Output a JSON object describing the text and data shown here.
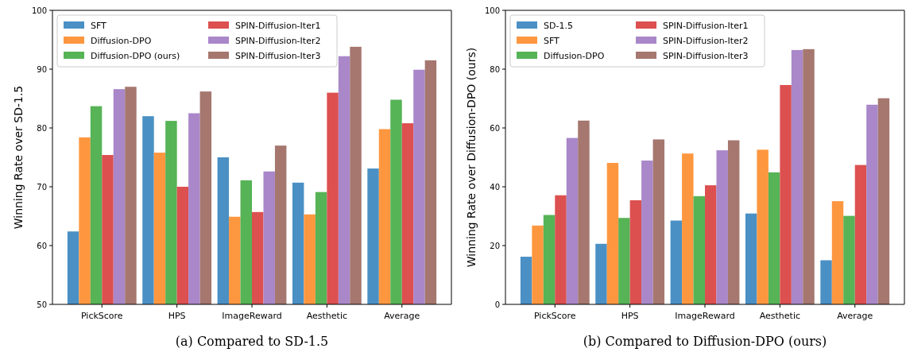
{
  "chart_data": [
    {
      "type": "bar",
      "ylabel": "Winning Rate over SD-1.5",
      "categories": [
        "PickScore",
        "HPS",
        "ImageReward",
        "Aesthetic",
        "Average"
      ],
      "ylim": [
        50,
        100
      ],
      "yticks": [
        50,
        60,
        70,
        80,
        90,
        100
      ],
      "legend": "top left",
      "annotations": [
        "(a) Compared to SD-1.5"
      ],
      "series": [
        {
          "name": "SFT",
          "color": "#4a90c4",
          "values": [
            62.4,
            82.0,
            75.0,
            70.7,
            73.1
          ]
        },
        {
          "name": "Diffusion-DPO",
          "color": "#fd973f",
          "values": [
            78.4,
            75.8,
            64.9,
            65.3,
            79.8
          ]
        },
        {
          "name": "Diffusion-DPO (ours)",
          "color": "#56b356",
          "values": [
            83.7,
            81.2,
            71.1,
            69.1,
            84.8
          ]
        },
        {
          "name": "SPIN-Diffusion-Iter1",
          "color": "#dc5050",
          "values": [
            75.4,
            70.0,
            65.7,
            86.0,
            80.8
          ]
        },
        {
          "name": "SPIN-Diffusion-Iter2",
          "color": "#a987c9",
          "values": [
            86.6,
            82.5,
            72.6,
            92.2,
            89.9
          ]
        },
        {
          "name": "SPIN-Diffusion-Iter3",
          "color": "#a5776f",
          "values": [
            87.0,
            86.2,
            77.0,
            93.8,
            91.5
          ]
        }
      ]
    },
    {
      "type": "bar",
      "ylabel": "Winning Rate over Diffusion-DPO (ours)",
      "categories": [
        "PickScore",
        "HPS",
        "ImageReward",
        "Aesthetic",
        "Average"
      ],
      "ylim": [
        0,
        100
      ],
      "yticks": [
        0,
        20,
        40,
        60,
        80,
        100
      ],
      "legend": "top left",
      "annotations": [
        "(b) Compared to Diffusion-DPO (ours)"
      ],
      "series": [
        {
          "name": "SD-1.5",
          "color": "#4a90c4",
          "values": [
            16.2,
            20.6,
            28.5,
            30.9,
            15.0
          ]
        },
        {
          "name": "SFT",
          "color": "#fd973f",
          "values": [
            26.8,
            48.1,
            51.3,
            52.6,
            35.1
          ]
        },
        {
          "name": "Diffusion-DPO",
          "color": "#56b356",
          "values": [
            30.4,
            29.4,
            36.8,
            44.9,
            30.1
          ]
        },
        {
          "name": "SPIN-Diffusion-Iter1",
          "color": "#dc5050",
          "values": [
            37.1,
            35.4,
            40.5,
            74.6,
            47.4
          ]
        },
        {
          "name": "SPIN-Diffusion-Iter2",
          "color": "#a987c9",
          "values": [
            56.6,
            48.9,
            52.4,
            86.5,
            67.9
          ]
        },
        {
          "name": "SPIN-Diffusion-Iter3",
          "color": "#a5776f",
          "values": [
            62.5,
            56.1,
            55.8,
            86.8,
            70.1
          ]
        }
      ]
    }
  ]
}
